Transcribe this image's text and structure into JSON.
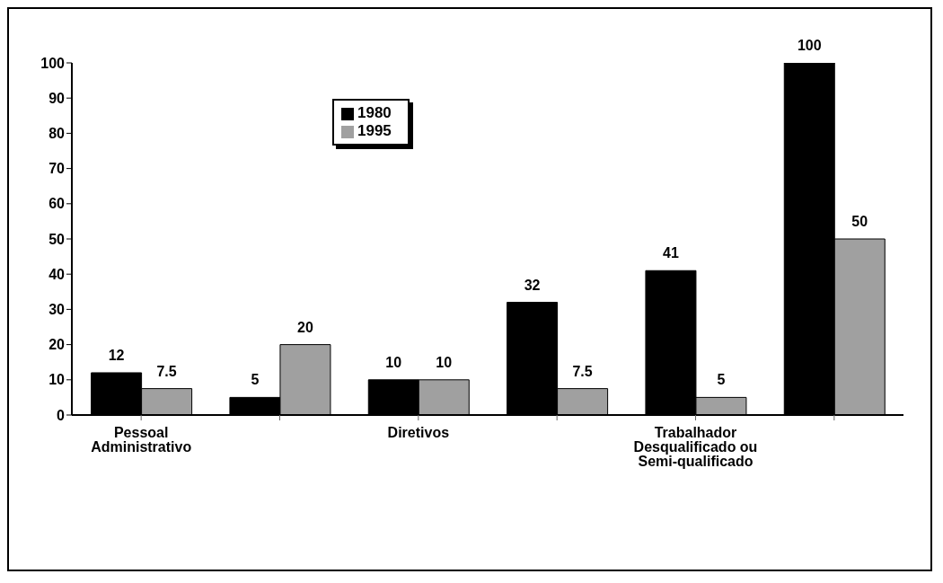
{
  "chart_data": {
    "type": "bar",
    "categories": [
      "Pessoal Administrativo",
      null,
      "Diretivos",
      null,
      "Trabalhador Desqualificado ou Semi-qualificado",
      null
    ],
    "series": [
      {
        "name": "1980",
        "color": "#000000",
        "values": [
          12,
          5,
          10,
          32,
          41,
          100
        ]
      },
      {
        "name": "1995",
        "color": "#a0a0a0",
        "values": [
          7.5,
          20,
          10,
          7.5,
          5,
          50
        ]
      }
    ],
    "ylim": [
      0,
      100
    ],
    "yticks": [
      0,
      10,
      20,
      30,
      40,
      50,
      60,
      70,
      80,
      90,
      100
    ],
    "data_labels": true,
    "grid": false,
    "legend": "top"
  }
}
